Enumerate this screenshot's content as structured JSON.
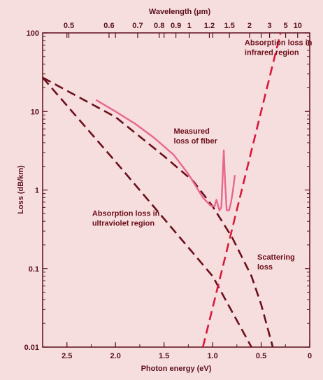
{
  "chart_data": {
    "type": "line",
    "title": "",
    "top_axis": {
      "label": "Wavelength (μm)",
      "tick_labels": [
        "0.5",
        "0.6",
        "0.7",
        "0.8",
        "0.9",
        "1",
        "1.2",
        "1.5",
        "2",
        "3",
        "5",
        "10"
      ],
      "tick_values_um": [
        0.5,
        0.6,
        0.7,
        0.8,
        0.9,
        1,
        1.2,
        1.5,
        2,
        3,
        5,
        10
      ]
    },
    "xlabel": "Photon energy (eV)",
    "ylabel": "Loss (dB/km)",
    "x_tick_labels": [
      "2.5",
      "2.0",
      "1.5",
      "1.0",
      "0.5",
      "0"
    ],
    "x_tick_values": [
      2.5,
      2.0,
      1.5,
      1.0,
      0.5,
      0
    ],
    "xlim": [
      2.75,
      0
    ],
    "y_scale": "log",
    "ylim": [
      0.01,
      100
    ],
    "y_tick_labels": [
      "100",
      "10",
      "1",
      "0.1",
      "0.01"
    ],
    "y_tick_values": [
      100,
      10,
      1,
      0.1,
      0.01
    ],
    "series": [
      {
        "name": "Absorption loss in ultraviolet region",
        "style": "dashed",
        "color": "#6b0f1a",
        "x": [
          2.75,
          2.0,
          1.5,
          1.0,
          0.6
        ],
        "y": [
          27,
          2.3,
          0.43,
          0.08,
          0.01
        ]
      },
      {
        "name": "Scattering loss",
        "style": "dashed",
        "color": "#6b0f1a",
        "x": [
          2.75,
          2.0,
          1.5,
          1.2,
          1.0,
          0.8,
          0.6,
          0.5,
          0.38
        ],
        "y": [
          27,
          8.5,
          2.7,
          1.3,
          0.62,
          0.25,
          0.08,
          0.035,
          0.01
        ]
      },
      {
        "name": "Absorption loss in infrared region",
        "style": "dashed",
        "color": "#d81a3a",
        "x": [
          1.1,
          0.9,
          0.7,
          0.5,
          0.3
        ],
        "y": [
          0.01,
          0.1,
          1,
          10,
          100
        ]
      },
      {
        "name": "Measured loss of fiber",
        "style": "solid",
        "color": "#e8678f",
        "x": [
          2.2,
          2.0,
          1.8,
          1.6,
          1.4,
          1.25,
          1.1,
          1.02,
          0.98,
          0.96,
          0.93,
          0.91,
          0.885,
          0.87,
          0.855,
          0.83,
          0.81,
          0.79,
          0.77
        ],
        "y": [
          14,
          10,
          7,
          4.6,
          2.8,
          1.6,
          0.8,
          0.63,
          0.62,
          0.75,
          0.55,
          0.6,
          3.2,
          1.2,
          0.55,
          0.55,
          0.7,
          1.0,
          1.55
        ]
      }
    ],
    "annotations": [
      {
        "lines": [
          "Absorption loss in",
          "infrared region"
        ],
        "x": 0.67,
        "y": 70
      },
      {
        "lines": [
          "Measured",
          "loss of fiber"
        ],
        "x": 1.4,
        "y": 5.2
      },
      {
        "lines": [
          "Absorption loss in",
          "ultraviolet region"
        ],
        "x": 2.24,
        "y": 0.47
      },
      {
        "lines": [
          "Scattering",
          "loss"
        ],
        "x": 0.54,
        "y": 0.13
      }
    ]
  }
}
